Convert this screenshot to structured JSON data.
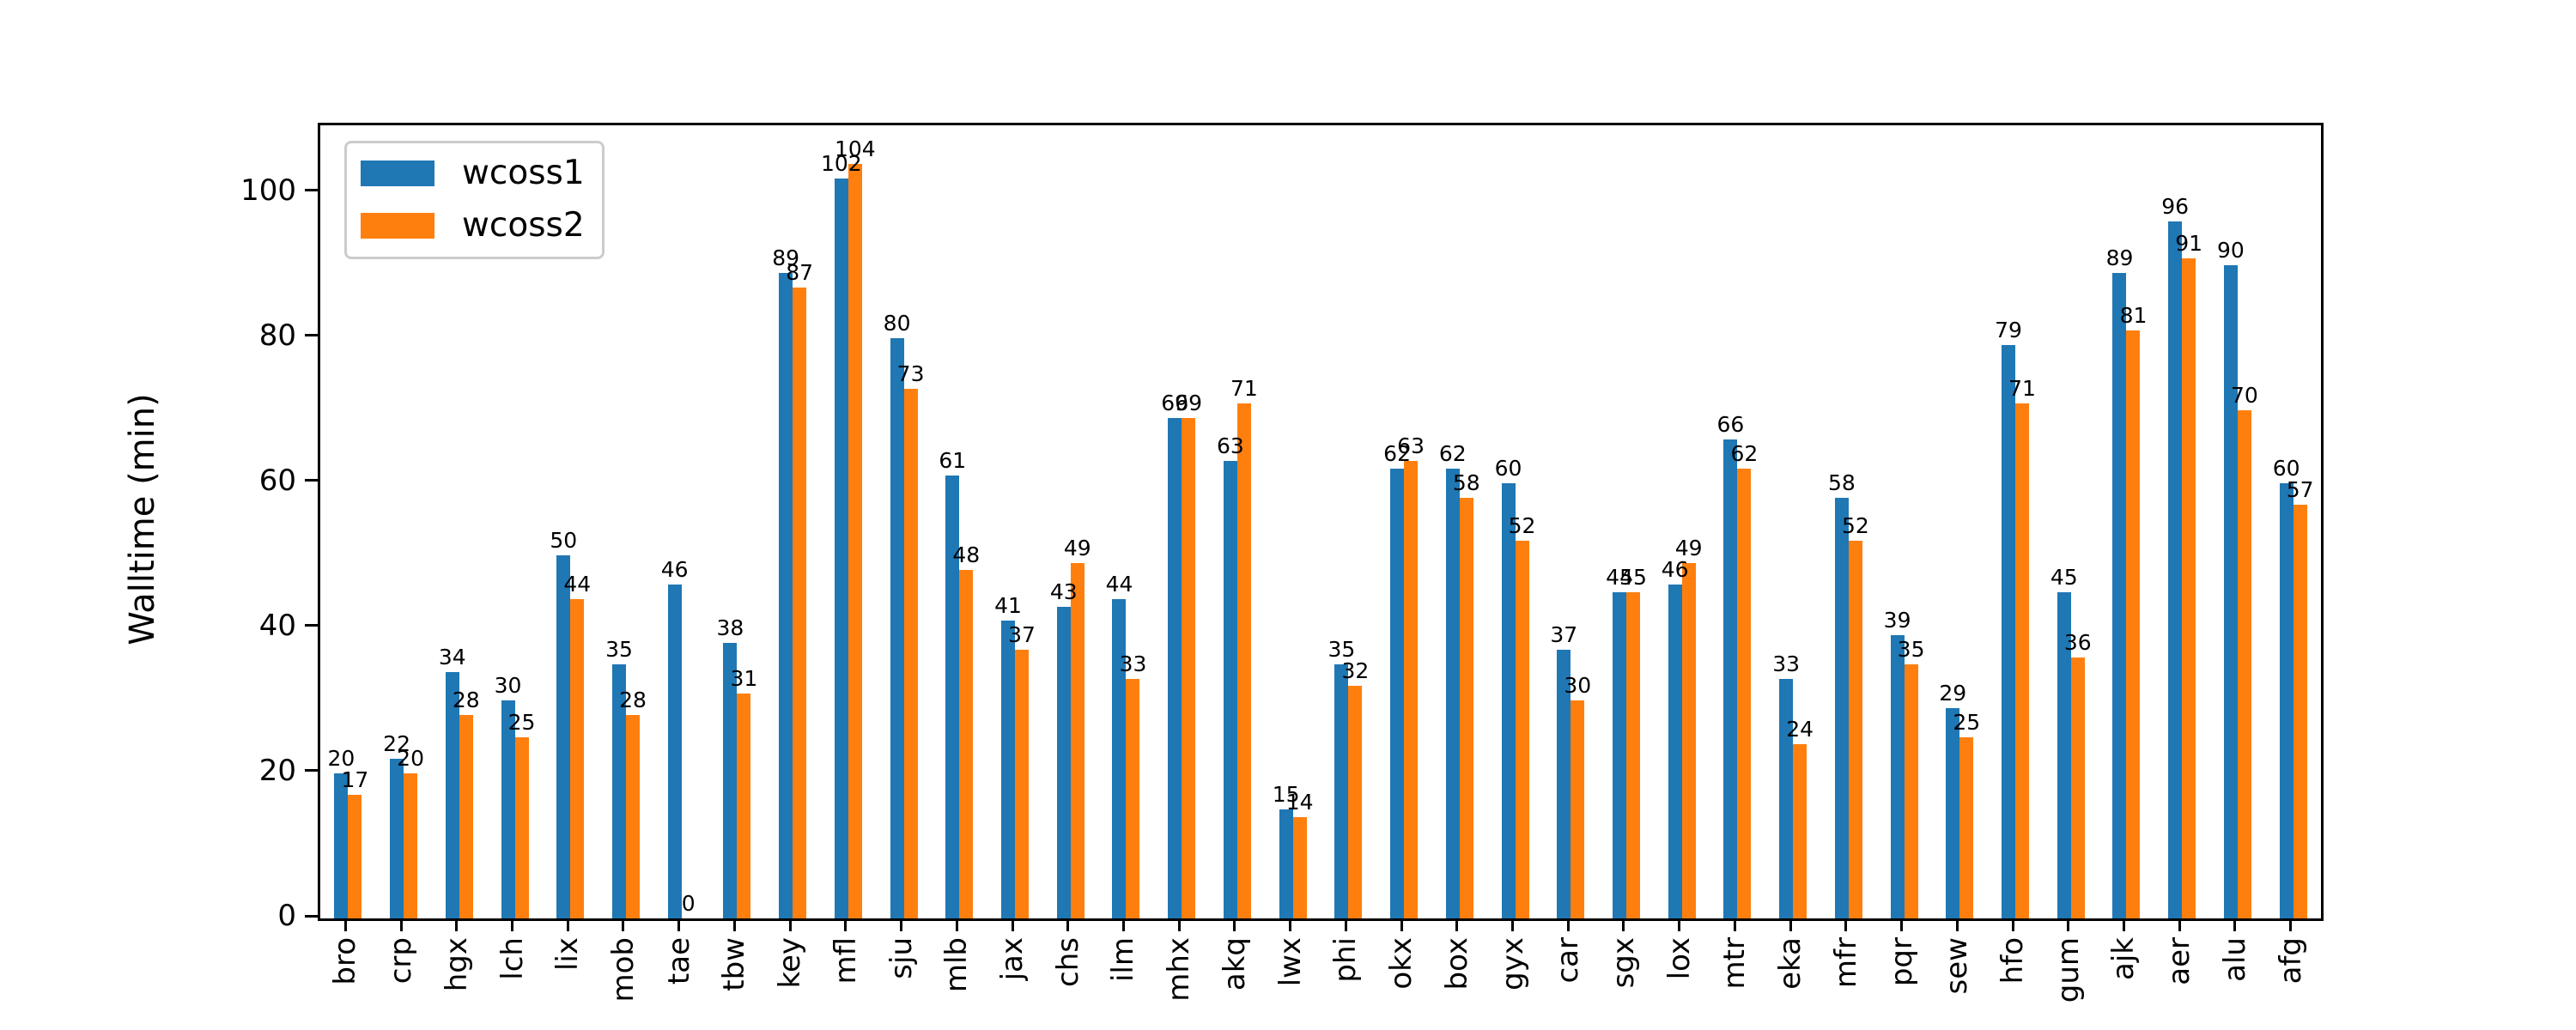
{
  "chart_data": {
    "type": "bar",
    "title": "",
    "xlabel": "",
    "ylabel": "Walltime (min)",
    "categories": [
      "bro",
      "crp",
      "hgx",
      "lch",
      "lix",
      "mob",
      "tae",
      "tbw",
      "key",
      "mfl",
      "sju",
      "mlb",
      "jax",
      "chs",
      "ilm",
      "mhx",
      "akq",
      "lwx",
      "phi",
      "okx",
      "box",
      "gyx",
      "car",
      "sgx",
      "lox",
      "mtr",
      "eka",
      "mfr",
      "pqr",
      "sew",
      "hfo",
      "gum",
      "ajk",
      "aer",
      "alu",
      "afg"
    ],
    "series": [
      {
        "name": "wcoss1",
        "color": "#1f77b4",
        "values": [
          20,
          22,
          34,
          30,
          50,
          35,
          46,
          38,
          89,
          102,
          80,
          61,
          41,
          43,
          44,
          69,
          63,
          15,
          35,
          62,
          62,
          60,
          37,
          45,
          46,
          66,
          33,
          58,
          39,
          29,
          79,
          45,
          89,
          96,
          90,
          60
        ]
      },
      {
        "name": "wcoss2",
        "color": "#ff7f0e",
        "values": [
          17,
          20,
          28,
          25,
          44,
          28,
          0,
          31,
          87,
          104,
          73,
          48,
          37,
          49,
          33,
          69,
          71,
          14,
          32,
          63,
          58,
          52,
          30,
          45,
          49,
          62,
          24,
          52,
          35,
          25,
          71,
          36,
          81,
          91,
          70,
          57
        ]
      }
    ],
    "y_ticks": [
      0,
      20,
      40,
      60,
      80,
      100
    ],
    "ylim": [
      0,
      109.3
    ],
    "grid": false,
    "legend_position": "upper left",
    "bar_value_labels": true
  }
}
